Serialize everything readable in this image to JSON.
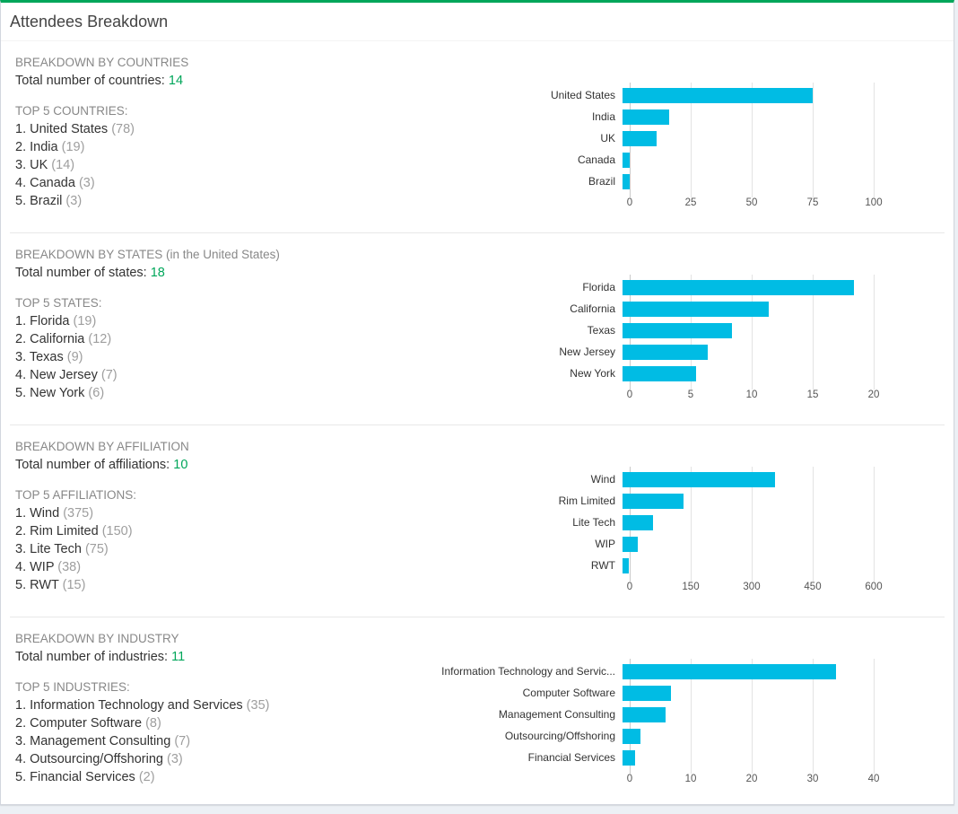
{
  "colors": {
    "accent_green": "#00a65a",
    "bar_cyan": "#00bce4",
    "page_background": "#ecf0f5",
    "panel_background": "#ffffff",
    "muted_gray": "#888888"
  },
  "header": {
    "title": "Attendees Breakdown"
  },
  "sections": [
    {
      "heading": "BREAKDOWN BY COUNTRIES",
      "total_label": "Total number of countries:",
      "total_value": "14",
      "top_label": "TOP 5 COUNTRIES:",
      "items": [
        {
          "rank": "1.",
          "name": "United States",
          "count": "(78)"
        },
        {
          "rank": "2.",
          "name": "India",
          "count": "(19)"
        },
        {
          "rank": "3.",
          "name": "UK",
          "count": "(14)"
        },
        {
          "rank": "4.",
          "name": "Canada",
          "count": "(3)"
        },
        {
          "rank": "5.",
          "name": "Brazil",
          "count": "(3)"
        }
      ]
    },
    {
      "heading": "BREAKDOWN BY STATES (in the United States)",
      "total_label": "Total number of states:",
      "total_value": "18",
      "top_label": "TOP 5 STATES:",
      "items": [
        {
          "rank": "1.",
          "name": "Florida",
          "count": "(19)"
        },
        {
          "rank": "2.",
          "name": "California",
          "count": "(12)"
        },
        {
          "rank": "3.",
          "name": "Texas",
          "count": "(9)"
        },
        {
          "rank": "4.",
          "name": "New Jersey",
          "count": "(7)"
        },
        {
          "rank": "5.",
          "name": "New York",
          "count": "(6)"
        }
      ]
    },
    {
      "heading": "BREAKDOWN BY AFFILIATION",
      "total_label": "Total number of affiliations:",
      "total_value": "10",
      "top_label": "TOP 5 AFFILIATIONS:",
      "items": [
        {
          "rank": "1.",
          "name": "Wind",
          "count": "(375)"
        },
        {
          "rank": "2.",
          "name": "Rim Limited",
          "count": "(150)"
        },
        {
          "rank": "3.",
          "name": "Lite Tech",
          "count": "(75)"
        },
        {
          "rank": "4.",
          "name": "WIP",
          "count": "(38)"
        },
        {
          "rank": "5.",
          "name": "RWT",
          "count": "(15)"
        }
      ]
    },
    {
      "heading": "BREAKDOWN BY INDUSTRY",
      "total_label": "Total number of industries:",
      "total_value": "11",
      "top_label": "TOP 5 INDUSTRIES:",
      "items": [
        {
          "rank": "1.",
          "name": "Information Technology and Services",
          "count": "(35)"
        },
        {
          "rank": "2.",
          "name": "Computer Software",
          "count": "(8)"
        },
        {
          "rank": "3.",
          "name": "Management Consulting",
          "count": "(7)"
        },
        {
          "rank": "4.",
          "name": "Outsourcing/Offshoring",
          "count": "(3)"
        },
        {
          "rank": "5.",
          "name": "Financial Services",
          "count": "(2)"
        }
      ]
    }
  ],
  "chart_data": [
    {
      "type": "bar",
      "orientation": "horizontal",
      "title": "Breakdown by Countries",
      "categories": [
        "United States",
        "India",
        "UK",
        "Canada",
        "Brazil"
      ],
      "values": [
        78,
        19,
        14,
        3,
        3
      ],
      "xlim": [
        0,
        100
      ],
      "xticks": [
        0,
        25,
        50,
        75,
        100
      ],
      "grid": true,
      "legend": "none",
      "bar_color": "#00bce4"
    },
    {
      "type": "bar",
      "orientation": "horizontal",
      "title": "Breakdown by States",
      "categories": [
        "Florida",
        "California",
        "Texas",
        "New Jersey",
        "New York"
      ],
      "values": [
        19,
        12,
        9,
        7,
        6
      ],
      "xlim": [
        0,
        20
      ],
      "xticks": [
        0,
        5,
        10,
        15,
        20
      ],
      "grid": true,
      "legend": "none",
      "bar_color": "#00bce4"
    },
    {
      "type": "bar",
      "orientation": "horizontal",
      "title": "Breakdown by Affiliation",
      "categories": [
        "Wind",
        "Rim Limited",
        "Lite Tech",
        "WIP",
        "RWT"
      ],
      "values": [
        375,
        150,
        75,
        38,
        15
      ],
      "xlim": [
        0,
        600
      ],
      "xticks": [
        0,
        150,
        300,
        450,
        600
      ],
      "grid": true,
      "legend": "none",
      "bar_color": "#00bce4"
    },
    {
      "type": "bar",
      "orientation": "horizontal",
      "title": "Breakdown by Industry",
      "categories": [
        "Information Technology and Servic...",
        "Computer Software",
        "Management Consulting",
        "Outsourcing/Offshoring",
        "Financial Services"
      ],
      "values": [
        35,
        8,
        7,
        3,
        2
      ],
      "xlim": [
        0,
        40
      ],
      "xticks": [
        0,
        10,
        20,
        30,
        40
      ],
      "grid": true,
      "legend": "none",
      "bar_color": "#00bce4"
    }
  ]
}
